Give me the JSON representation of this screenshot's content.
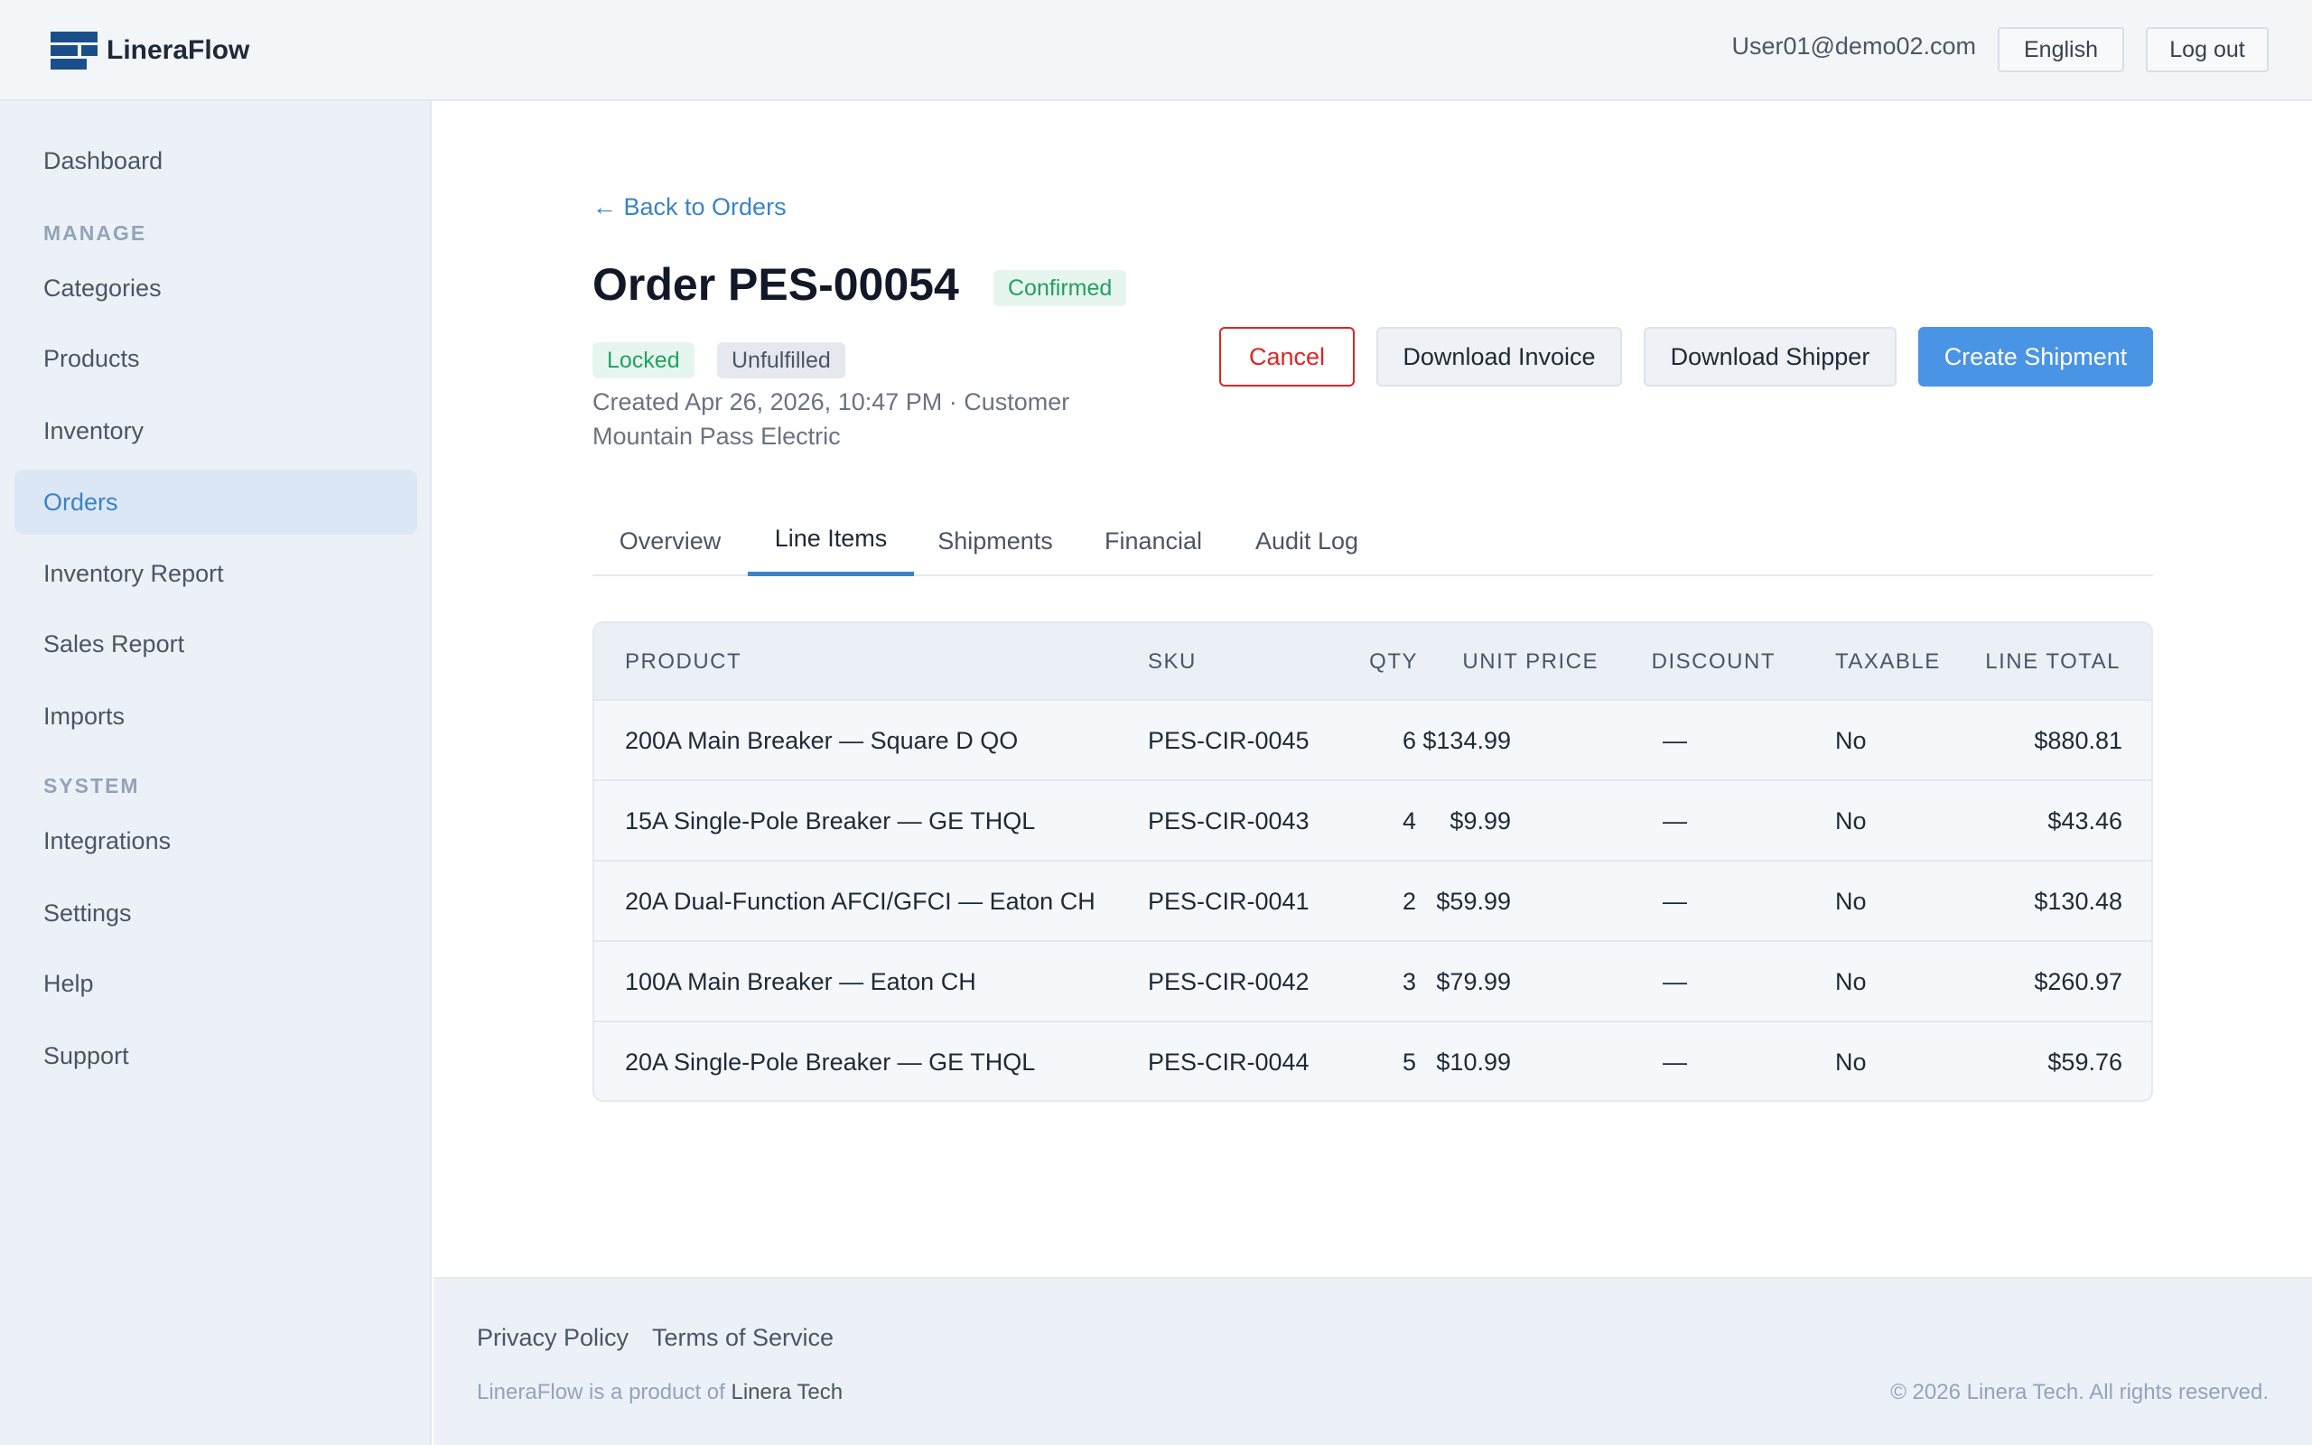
{
  "header": {
    "brand": "LineraFlow",
    "user_email": "User01@demo02.com",
    "language_label": "English",
    "logout_label": "Log out"
  },
  "sidebar": {
    "items": [
      {
        "label": "Dashboard",
        "active": false
      },
      {
        "section": "MANAGE"
      },
      {
        "label": "Categories",
        "active": false
      },
      {
        "label": "Products",
        "active": false
      },
      {
        "label": "Inventory",
        "active": false
      },
      {
        "label": "Orders",
        "active": true
      },
      {
        "label": "Inventory Report",
        "active": false
      },
      {
        "label": "Sales Report",
        "active": false
      },
      {
        "label": "Imports",
        "active": false
      },
      {
        "section": "SYSTEM"
      },
      {
        "label": "Integrations",
        "active": false
      },
      {
        "label": "Settings",
        "active": false
      },
      {
        "label": "Help",
        "active": false
      },
      {
        "label": "Support",
        "active": false
      }
    ]
  },
  "order": {
    "back_link": "← Back to Orders",
    "title": "Order PES-00054",
    "status": "Confirmed",
    "badges": [
      "Locked",
      "Unfulfilled"
    ],
    "meta_line1": "Created Apr 26, 2026, 10:47 PM  ·  Customer",
    "meta_line2": "Mountain Pass Electric",
    "actions": {
      "cancel": "Cancel",
      "download_invoice": "Download Invoice",
      "download_shipper": "Download Shipper",
      "create_shipment": "Create Shipment"
    },
    "tabs": [
      {
        "label": "Overview",
        "active": false
      },
      {
        "label": "Line Items",
        "active": true
      },
      {
        "label": "Shipments",
        "active": false
      },
      {
        "label": "Financial",
        "active": false
      },
      {
        "label": "Audit Log",
        "active": false
      }
    ]
  },
  "line_items": {
    "columns": [
      "PRODUCT",
      "SKU",
      "QTY",
      "UNIT PRICE",
      "DISCOUNT",
      "TAXABLE",
      "LINE TOTAL"
    ],
    "rows": [
      {
        "product": "200A Main Breaker — Square D QO",
        "sku": "PES-CIR-0045",
        "qty": "6",
        "unit_price": "$134.99",
        "discount": "—",
        "taxable": "No",
        "line_total": "$880.81"
      },
      {
        "product": "15A Single-Pole Breaker — GE THQL",
        "sku": "PES-CIR-0043",
        "qty": "4",
        "unit_price": "$9.99",
        "discount": "—",
        "taxable": "No",
        "line_total": "$43.46"
      },
      {
        "product": "20A Dual-Function AFCI/GFCI — Eaton CH",
        "sku": "PES-CIR-0041",
        "qty": "2",
        "unit_price": "$59.99",
        "discount": "—",
        "taxable": "No",
        "line_total": "$130.48"
      },
      {
        "product": "100A Main Breaker — Eaton CH",
        "sku": "PES-CIR-0042",
        "qty": "3",
        "unit_price": "$79.99",
        "discount": "—",
        "taxable": "No",
        "line_total": "$260.97"
      },
      {
        "product": "20A Single-Pole Breaker — GE THQL",
        "sku": "PES-CIR-0044",
        "qty": "5",
        "unit_price": "$10.99",
        "discount": "—",
        "taxable": "No",
        "line_total": "$59.76"
      }
    ]
  },
  "footer": {
    "privacy": "Privacy Policy",
    "terms": "Terms of Service",
    "note_prefix": "LineraFlow is a product of",
    "note_company": "Linera Tech",
    "copyright": "© 2026 Linera Tech. All rights reserved."
  },
  "colors": {
    "accent": "#3b82c9",
    "primary_button": "#4a94e6",
    "danger": "#dc2626",
    "success": "#22a060"
  }
}
